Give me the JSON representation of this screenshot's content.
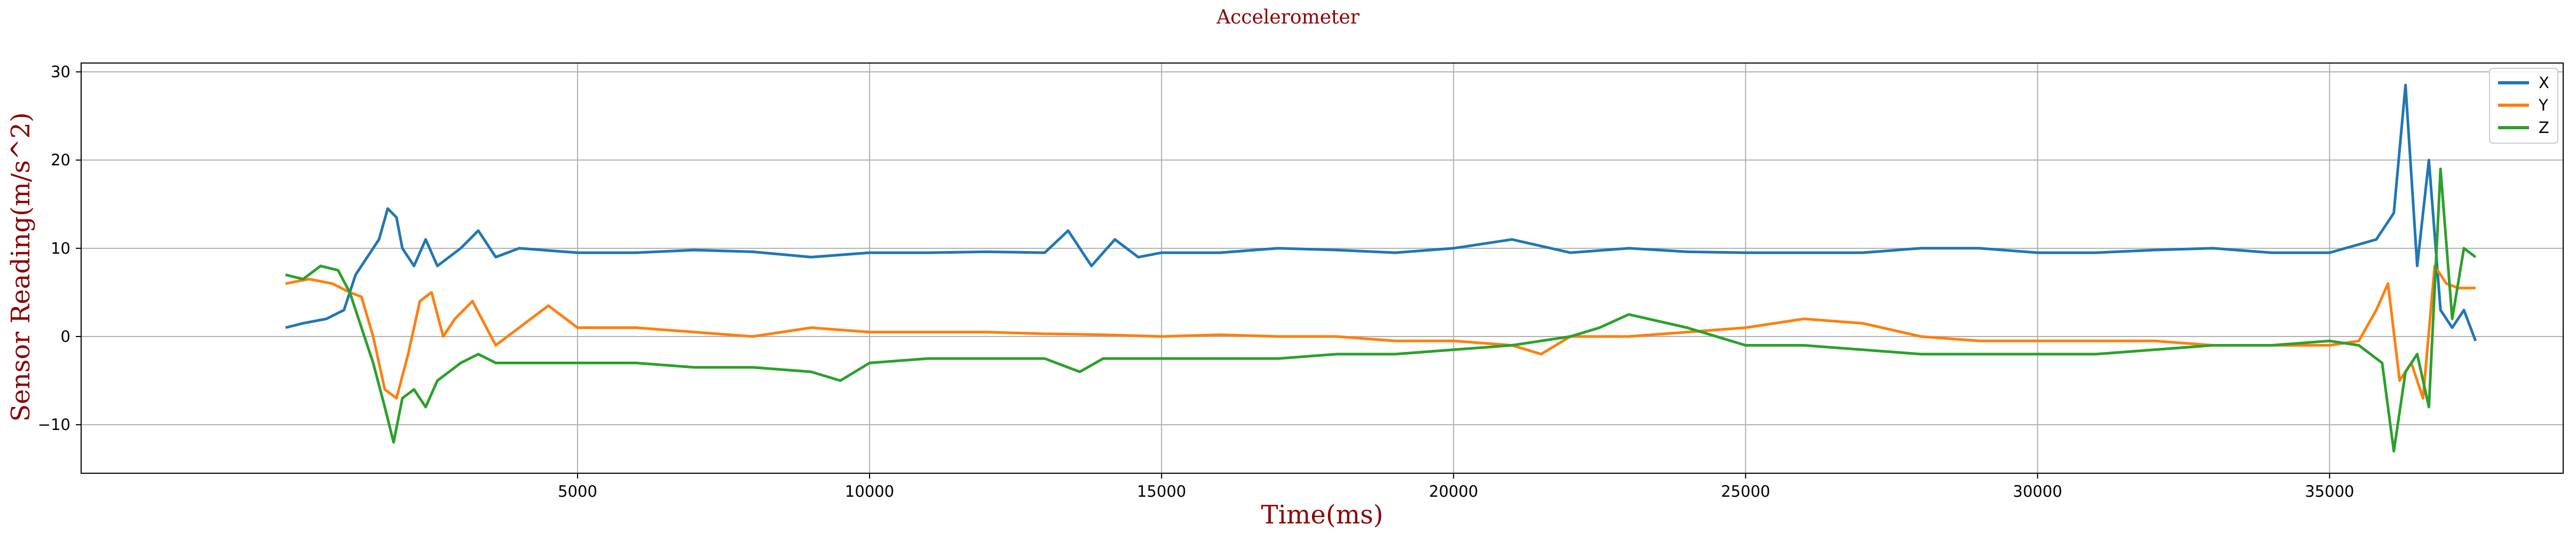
{
  "chart_data": {
    "type": "line",
    "title": "Accelerometer",
    "xlabel": "Time(ms)",
    "ylabel": "Sensor Reading(m/s^2)",
    "xlim": [
      -3500,
      39000
    ],
    "ylim": [
      -15.5,
      31
    ],
    "xticks": [
      5000,
      10000,
      15000,
      20000,
      25000,
      30000,
      35000
    ],
    "yticks": [
      -10,
      0,
      10,
      20,
      30
    ],
    "xtick_labels": [
      "5000",
      "10000",
      "15000",
      "20000",
      "25000",
      "30000",
      "35000"
    ],
    "ytick_labels": [
      "−10",
      "0",
      "10",
      "20",
      "30"
    ],
    "grid": true,
    "legend_position": "top-right",
    "series": [
      {
        "name": "X",
        "color": "#1f77b4",
        "x": [
          0,
          300,
          700,
          1000,
          1200,
          1400,
          1600,
          1750,
          1900,
          2000,
          2200,
          2400,
          2600,
          2800,
          3000,
          3300,
          3600,
          4000,
          5000,
          6000,
          7000,
          8000,
          9000,
          10000,
          11000,
          12000,
          13000,
          13400,
          13800,
          14200,
          14600,
          15000,
          16000,
          17000,
          18000,
          19000,
          20000,
          21000,
          22000,
          23000,
          24000,
          25000,
          26000,
          27000,
          28000,
          29000,
          30000,
          31000,
          32000,
          33000,
          34000,
          35000,
          35800,
          36100,
          36300,
          36500,
          36700,
          36900,
          37100,
          37300,
          37500
        ],
        "y": [
          1,
          1.5,
          2,
          3,
          7,
          9,
          11,
          14.5,
          13.5,
          10,
          8,
          11,
          8,
          9,
          10,
          12,
          9,
          10,
          9.5,
          9.5,
          9.8,
          9.6,
          9,
          9.5,
          9.5,
          9.6,
          9.5,
          12,
          8,
          11,
          9,
          9.5,
          9.5,
          10,
          9.8,
          9.5,
          10,
          11,
          9.5,
          10,
          9.6,
          9.5,
          9.5,
          9.5,
          10,
          10,
          9.5,
          9.5,
          9.8,
          10,
          9.5,
          9.5,
          11,
          14,
          28.5,
          8,
          20,
          3,
          1,
          3,
          -0.5
        ]
      },
      {
        "name": "Y",
        "color": "#ff7f0e",
        "x": [
          0,
          400,
          800,
          1100,
          1300,
          1500,
          1700,
          1900,
          2100,
          2300,
          2500,
          2700,
          2900,
          3200,
          3600,
          4000,
          4500,
          5000,
          6000,
          7000,
          8000,
          9000,
          10000,
          11000,
          12000,
          13000,
          14000,
          15000,
          16000,
          17000,
          18000,
          19000,
          20000,
          21000,
          21500,
          22000,
          23000,
          24000,
          25000,
          26000,
          27000,
          28000,
          29000,
          30000,
          31000,
          32000,
          33000,
          34000,
          35000,
          35500,
          35800,
          36000,
          36200,
          36400,
          36600,
          36800,
          37000,
          37200,
          37500
        ],
        "y": [
          6,
          6.5,
          6,
          5,
          4.5,
          0,
          -6,
          -7,
          -2,
          4,
          5,
          0,
          2,
          4,
          -1,
          1,
          3.5,
          1,
          1,
          0.5,
          0,
          1,
          0.5,
          0.5,
          0.5,
          0.3,
          0.2,
          0,
          0.2,
          0,
          0,
          -0.5,
          -0.5,
          -1,
          -2,
          0,
          0,
          0.5,
          1,
          2,
          1.5,
          0,
          -0.5,
          -0.5,
          -0.5,
          -0.5,
          -1,
          -1,
          -1,
          -0.5,
          3,
          6,
          -5,
          -3,
          -7,
          8,
          6,
          5.5,
          5.5
        ]
      },
      {
        "name": "Z",
        "color": "#2ca02c",
        "x": [
          0,
          300,
          600,
          900,
          1100,
          1300,
          1500,
          1700,
          1850,
          2000,
          2200,
          2400,
          2600,
          2800,
          3000,
          3300,
          3600,
          4000,
          5000,
          6000,
          7000,
          8000,
          9000,
          9500,
          10000,
          11000,
          12000,
          13000,
          13600,
          14000,
          15000,
          16000,
          17000,
          18000,
          19000,
          20000,
          21000,
          22000,
          22500,
          23000,
          24000,
          25000,
          26000,
          27000,
          28000,
          29000,
          30000,
          31000,
          32000,
          33000,
          34000,
          35000,
          35500,
          35900,
          36100,
          36300,
          36500,
          36700,
          36900,
          37100,
          37300,
          37500
        ],
        "y": [
          7,
          6.5,
          8,
          7.5,
          5,
          1,
          -3,
          -8,
          -12,
          -7,
          -6,
          -8,
          -5,
          -4,
          -3,
          -2,
          -3,
          -3,
          -3,
          -3,
          -3.5,
          -3.5,
          -4,
          -5,
          -3,
          -2.5,
          -2.5,
          -2.5,
          -4,
          -2.5,
          -2.5,
          -2.5,
          -2.5,
          -2,
          -2,
          -1.5,
          -1,
          0,
          1,
          2.5,
          1,
          -1,
          -1,
          -1.5,
          -2,
          -2,
          -2,
          -2,
          -1.5,
          -1,
          -1,
          -0.5,
          -1,
          -3,
          -13,
          -4,
          -2,
          -8,
          19,
          2,
          10,
          9
        ]
      }
    ]
  }
}
